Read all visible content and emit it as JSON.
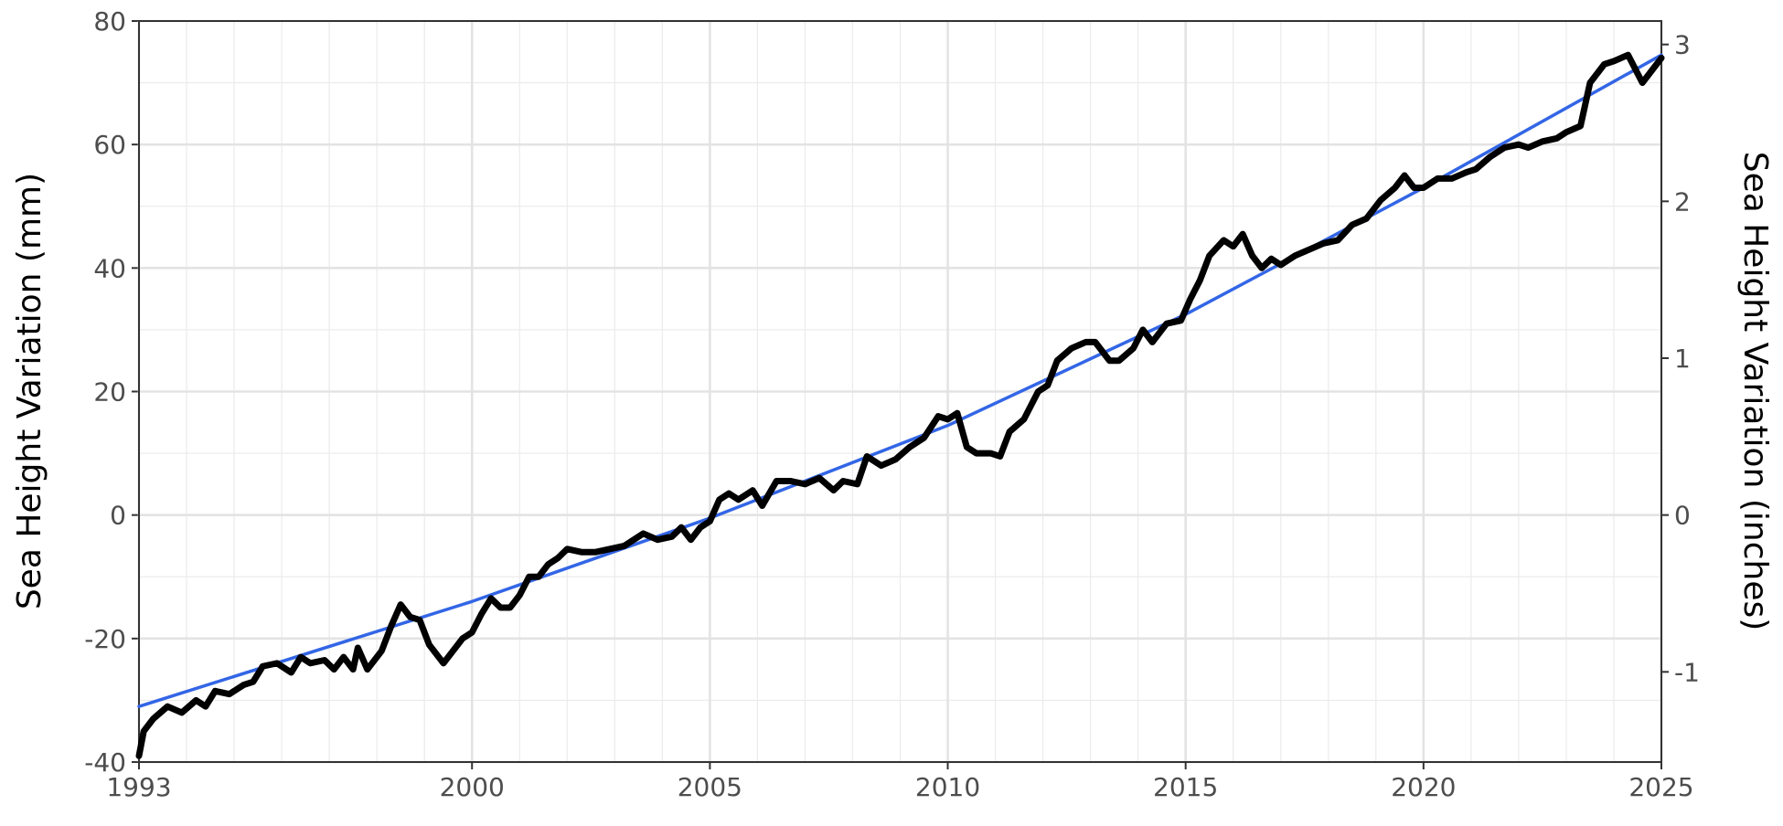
{
  "chart_data": {
    "type": "line",
    "ylabel": "Sea Height Variation (mm)",
    "y2label": "Sea Height Variation (inches)",
    "xlim": [
      1993,
      2025
    ],
    "xticks": [
      1993,
      2000,
      2005,
      2010,
      2015,
      2020,
      2025
    ],
    "ylim": [
      -40,
      80
    ],
    "yticks": [
      -40,
      -20,
      0,
      20,
      40,
      60,
      80
    ],
    "y2lim": [
      -1.5748,
      3.1496
    ],
    "y2ticks": [
      -1,
      0,
      1,
      2,
      3
    ],
    "grid": true,
    "series": [
      {
        "color": "#000000",
        "x": [
          1993.0,
          1993.1,
          1993.3,
          1993.6,
          1993.9,
          1994.2,
          1994.4,
          1994.6,
          1994.9,
          1995.2,
          1995.4,
          1995.6,
          1995.9,
          1996.2,
          1996.4,
          1996.6,
          1996.9,
          1997.1,
          1997.3,
          1997.5,
          1997.6,
          1997.8,
          1998.1,
          1998.3,
          1998.5,
          1998.7,
          1998.9,
          1999.1,
          1999.4,
          1999.6,
          1999.8,
          2000.0,
          2000.2,
          2000.4,
          2000.6,
          2000.8,
          2001.0,
          2001.2,
          2001.4,
          2001.6,
          2001.8,
          2002.0,
          2002.3,
          2002.6,
          2002.9,
          2003.2,
          2003.4,
          2003.6,
          2003.9,
          2004.2,
          2004.4,
          2004.6,
          2004.8,
          2005.0,
          2005.2,
          2005.4,
          2005.6,
          2005.9,
          2006.1,
          2006.4,
          2006.7,
          2007.0,
          2007.3,
          2007.6,
          2007.8,
          2008.1,
          2008.3,
          2008.6,
          2008.9,
          2009.2,
          2009.5,
          2009.8,
          2010.0,
          2010.2,
          2010.4,
          2010.6,
          2010.9,
          2011.1,
          2011.3,
          2011.6,
          2011.9,
          2012.1,
          2012.3,
          2012.6,
          2012.9,
          2013.1,
          2013.4,
          2013.6,
          2013.9,
          2014.1,
          2014.3,
          2014.6,
          2014.9,
          2015.1,
          2015.3,
          2015.5,
          2015.8,
          2016.0,
          2016.2,
          2016.4,
          2016.6,
          2016.8,
          2017.0,
          2017.3,
          2017.6,
          2017.9,
          2018.2,
          2018.5,
          2018.8,
          2019.1,
          2019.4,
          2019.6,
          2019.8,
          2020.0,
          2020.3,
          2020.6,
          2020.9,
          2021.1,
          2021.4,
          2021.7,
          2022.0,
          2022.2,
          2022.5,
          2022.8,
          2023.0,
          2023.3,
          2023.5,
          2023.8,
          2024.0,
          2024.3,
          2024.6,
          2024.8,
          2025.0
        ],
        "values": [
          -39,
          -35,
          -33,
          -31,
          -32,
          -30,
          -31,
          -28.5,
          -29,
          -27.5,
          -27,
          -24.5,
          -24,
          -25.5,
          -23,
          -24,
          -23.5,
          -25,
          -23,
          -25,
          -21.5,
          -25,
          -22,
          -18,
          -14.5,
          -16.5,
          -17,
          -21,
          -24,
          -22,
          -20,
          -19,
          -16,
          -13.5,
          -15,
          -15,
          -13,
          -10,
          -10,
          -8,
          -7,
          -5.5,
          -6,
          -6,
          -5.5,
          -5,
          -4,
          -3,
          -4,
          -3.5,
          -2,
          -4,
          -2,
          -1,
          2.5,
          3.5,
          2.5,
          4,
          1.5,
          5.5,
          5.5,
          5,
          6,
          4,
          5.5,
          5,
          9.5,
          8,
          9,
          11,
          12.5,
          16,
          15.5,
          16.5,
          11,
          10,
          10,
          9.5,
          13.5,
          15.5,
          20,
          21,
          25,
          27,
          28,
          28,
          25,
          25,
          27,
          30,
          28,
          31,
          31.5,
          35,
          38,
          42,
          44.5,
          43.5,
          45.5,
          42,
          40,
          41.5,
          40.5,
          42,
          43,
          44,
          44.5,
          47,
          48,
          51,
          53,
          55,
          53,
          53,
          54.5,
          54.5,
          55.5,
          56,
          58,
          59.5,
          60,
          59.5,
          60.5,
          61,
          62,
          63,
          70,
          73,
          73.5,
          74.5,
          70,
          72,
          74
        ]
      },
      {
        "color": "#3366e6",
        "x": [
          1993,
          2000,
          2005,
          2010,
          2015,
          2020,
          2025
        ],
        "values": [
          -31,
          -14,
          -0.5,
          14.5,
          32.5,
          53,
          74.5
        ]
      }
    ]
  }
}
